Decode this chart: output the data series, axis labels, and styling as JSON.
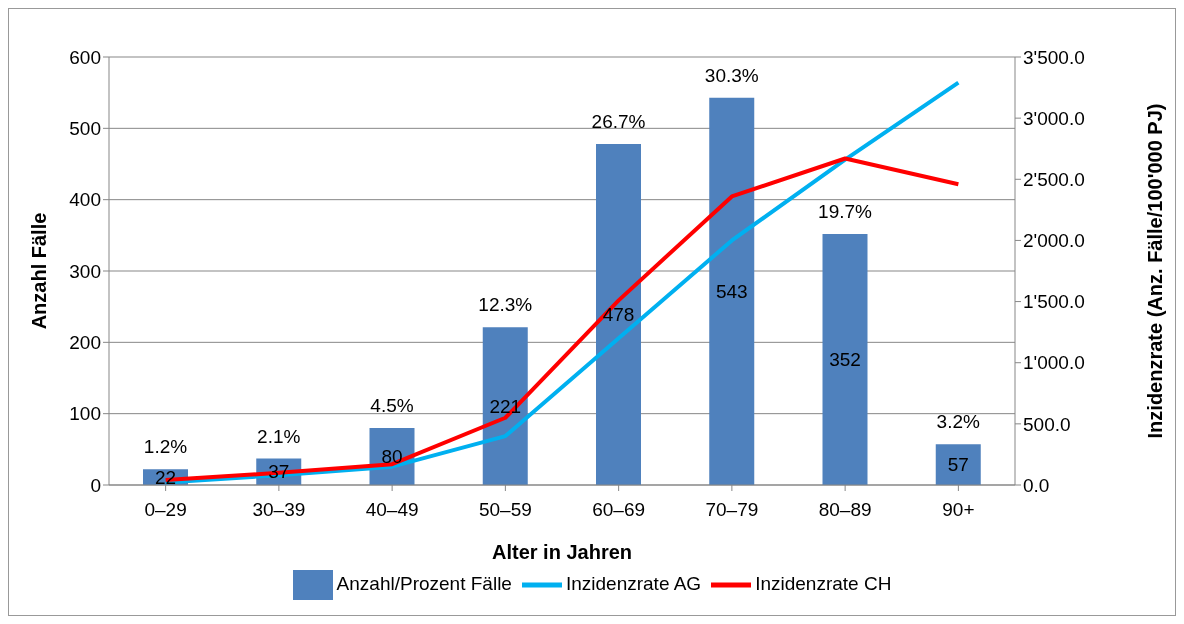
{
  "chart_data": {
    "type": "bar",
    "xlabel": "Alter in Jahren",
    "ylabel": "Anzahl Fälle",
    "y2label": "Inzidenzrate (Anz. Fälle/100'000 PJ)",
    "categories": [
      "0–29",
      "30–39",
      "40–49",
      "50–59",
      "60–69",
      "70–79",
      "80–89",
      "90+"
    ],
    "series": [
      {
        "name": "Anzahl/Prozent Fälle",
        "color": "#4f81bd",
        "values": [
          22,
          37,
          80,
          221,
          478,
          543,
          352,
          57
        ],
        "value_labels": [
          "22",
          "37",
          "80",
          "221",
          "478",
          "543",
          "352",
          "57"
        ]
      },
      {
        "name": "Inzidenzrate AG",
        "type": "line",
        "axis": "y2",
        "color": "#00b0f0",
        "values": [
          20,
          80,
          150,
          400,
          1200,
          2000,
          2660,
          3290
        ]
      },
      {
        "name": "Inzidenzrate CH",
        "type": "line",
        "axis": "y2",
        "color": "#ff0000",
        "values": [
          40,
          100,
          170,
          550,
          1510,
          2360,
          2670,
          2460
        ]
      }
    ],
    "annotations": [
      {
        "text": "1.2%",
        "x": "0–29",
        "y": 22
      },
      {
        "text": "2.1%",
        "x": "30–39",
        "y": 37
      },
      {
        "text": "4.5%",
        "x": "40–49",
        "y": 80
      },
      {
        "text": "12.3%",
        "x": "50–59",
        "y": 221
      },
      {
        "text": "26.7%",
        "x": "60–69",
        "y": 478
      },
      {
        "text": "30.3%",
        "x": "70–79",
        "y": 543
      },
      {
        "text": "19.7%",
        "x": "80–89",
        "y": 352
      },
      {
        "text": "3.2%",
        "x": "90+",
        "y": 57
      }
    ],
    "ylim": [
      0,
      600
    ],
    "yticks": [
      0,
      100,
      200,
      300,
      400,
      500,
      600
    ],
    "y2lim": [
      0,
      3500
    ],
    "y2ticks": [
      {
        "value": 0,
        "label": "0.0"
      },
      {
        "value": 500,
        "label": "500.0"
      },
      {
        "value": 1000,
        "label": "1'000.0"
      },
      {
        "value": 1500,
        "label": "1'500.0"
      },
      {
        "value": 2000,
        "label": "2'000.0"
      },
      {
        "value": 2500,
        "label": "2'500.0"
      },
      {
        "value": 3000,
        "label": "3'000.0"
      },
      {
        "value": 3500,
        "label": "3'500.0"
      }
    ],
    "grid": "y",
    "legend": "bottom",
    "marker": "none",
    "line_style": "solid"
  }
}
